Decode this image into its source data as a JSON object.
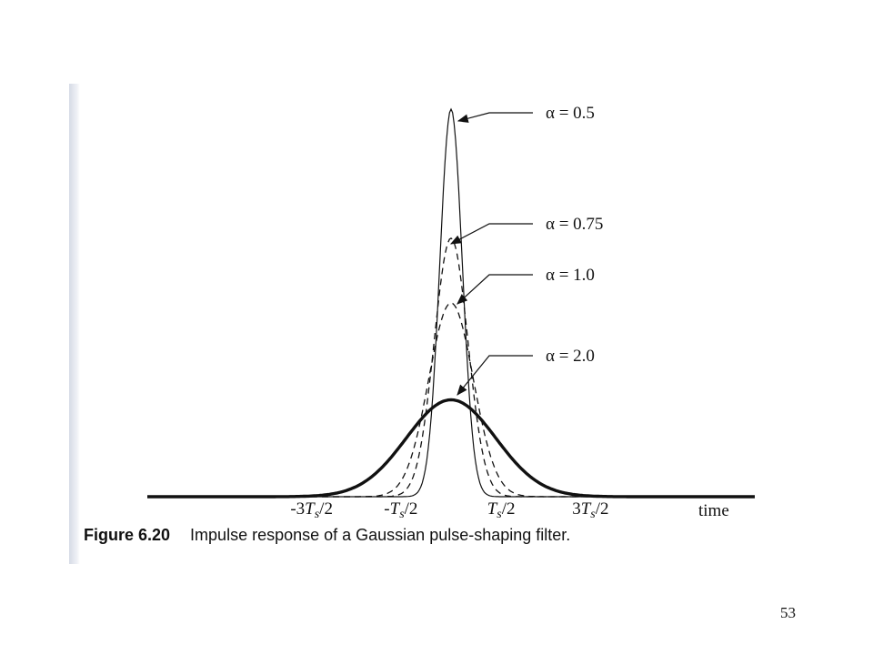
{
  "figure": {
    "number": "Figure 6.20",
    "caption": "Impulse response of a Gaussian pulse-shaping filter."
  },
  "page_number": "53",
  "chart_data": {
    "type": "line",
    "xlabel": "time",
    "ylabel": "",
    "x_ticks": [
      "-3T_s/2",
      "-T_s/2",
      "T_s/2",
      "3T_s/2"
    ],
    "x_tick_values": [
      -1.5,
      -0.5,
      0.5,
      1.5
    ],
    "xlim": [
      -3.4,
      3.4
    ],
    "series": [
      {
        "name": "α = 0.5",
        "alpha": 0.5,
        "peak": 1.0,
        "style": "solid-thin"
      },
      {
        "name": "α = 0.75",
        "alpha": 0.75,
        "peak": 0.667,
        "style": "dashed"
      },
      {
        "name": "α = 1.0",
        "alpha": 1.0,
        "peak": 0.5,
        "style": "dashed"
      },
      {
        "name": "α = 2.0",
        "alpha": 2.0,
        "peak": 0.25,
        "style": "solid-thick"
      }
    ],
    "grid": false,
    "legend": "annotations with arrows"
  }
}
